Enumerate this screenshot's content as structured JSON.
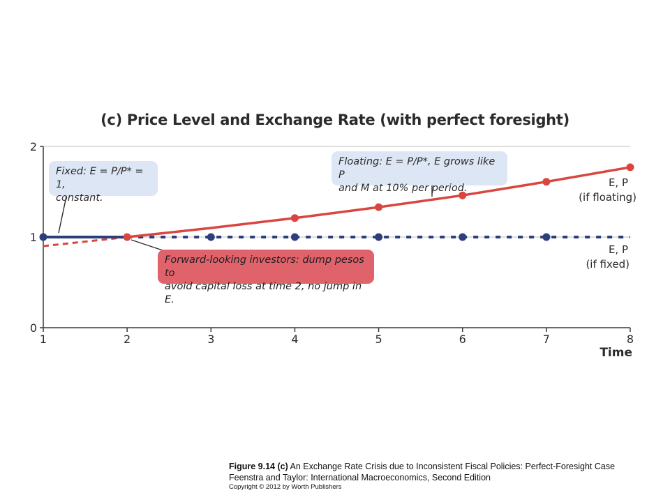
{
  "chart_data": {
    "type": "line",
    "title": "(c) Price Level and Exchange Rate (with perfect foresight)",
    "xlabel": "Time",
    "ylabel": "",
    "x": [
      1,
      2,
      3,
      4,
      5,
      6,
      7,
      8
    ],
    "xlim": [
      1,
      8
    ],
    "ylim": [
      0,
      2
    ],
    "x_ticks": [
      "1",
      "2",
      "3",
      "4",
      "5",
      "6",
      "7",
      "8"
    ],
    "y_ticks": [
      "0",
      "1",
      "2"
    ],
    "grid": true,
    "series": [
      {
        "name": "E, P (if floating)",
        "label_line1": "E, P",
        "label_line2": "(if floating)",
        "x": [
          2,
          3,
          4,
          5,
          6,
          7,
          8
        ],
        "values": [
          1.0,
          1.1,
          1.21,
          1.33,
          1.46,
          1.61,
          1.77
        ],
        "marker_x": [
          2,
          4,
          5,
          6,
          7,
          8
        ],
        "color": "#d9463f"
      },
      {
        "name": "E, P (if fixed)",
        "label_line1": "E, P",
        "label_line2": "(if fixed)",
        "x": [
          1,
          2,
          3,
          4,
          5,
          6,
          7,
          8
        ],
        "values": [
          1,
          1,
          1,
          1,
          1,
          1,
          1,
          1
        ],
        "solid_until": 2,
        "marker_x": [
          1,
          3,
          4,
          5,
          6,
          7
        ],
        "color": "#2d3f7a"
      }
    ],
    "red_dashed_segment": {
      "x": [
        1,
        2
      ],
      "values": [
        0.9,
        1.0
      ]
    },
    "annotations": {
      "fixed_line1": "Fixed: E = P/P* = 1,",
      "fixed_line2": "constant.",
      "floating_line1": "Floating: E = P/P*, E grows like P",
      "floating_line2": "and M at 10% per period.",
      "investors_line1": "Forward-looking investors: dump pesos to",
      "investors_line2": "avoid capital loss at time 2, no jump in E."
    }
  },
  "caption": {
    "figure_label": "Figure 9.14 (c)",
    "figure_text": " An Exchange Rate Crisis due to Inconsistent Fiscal Policies: Perfect-Foresight Case",
    "book": "Feenstra and Taylor: International Macroeconomics, Second Edition",
    "copyright": "Copyright © 2012 by Worth Publishers"
  }
}
